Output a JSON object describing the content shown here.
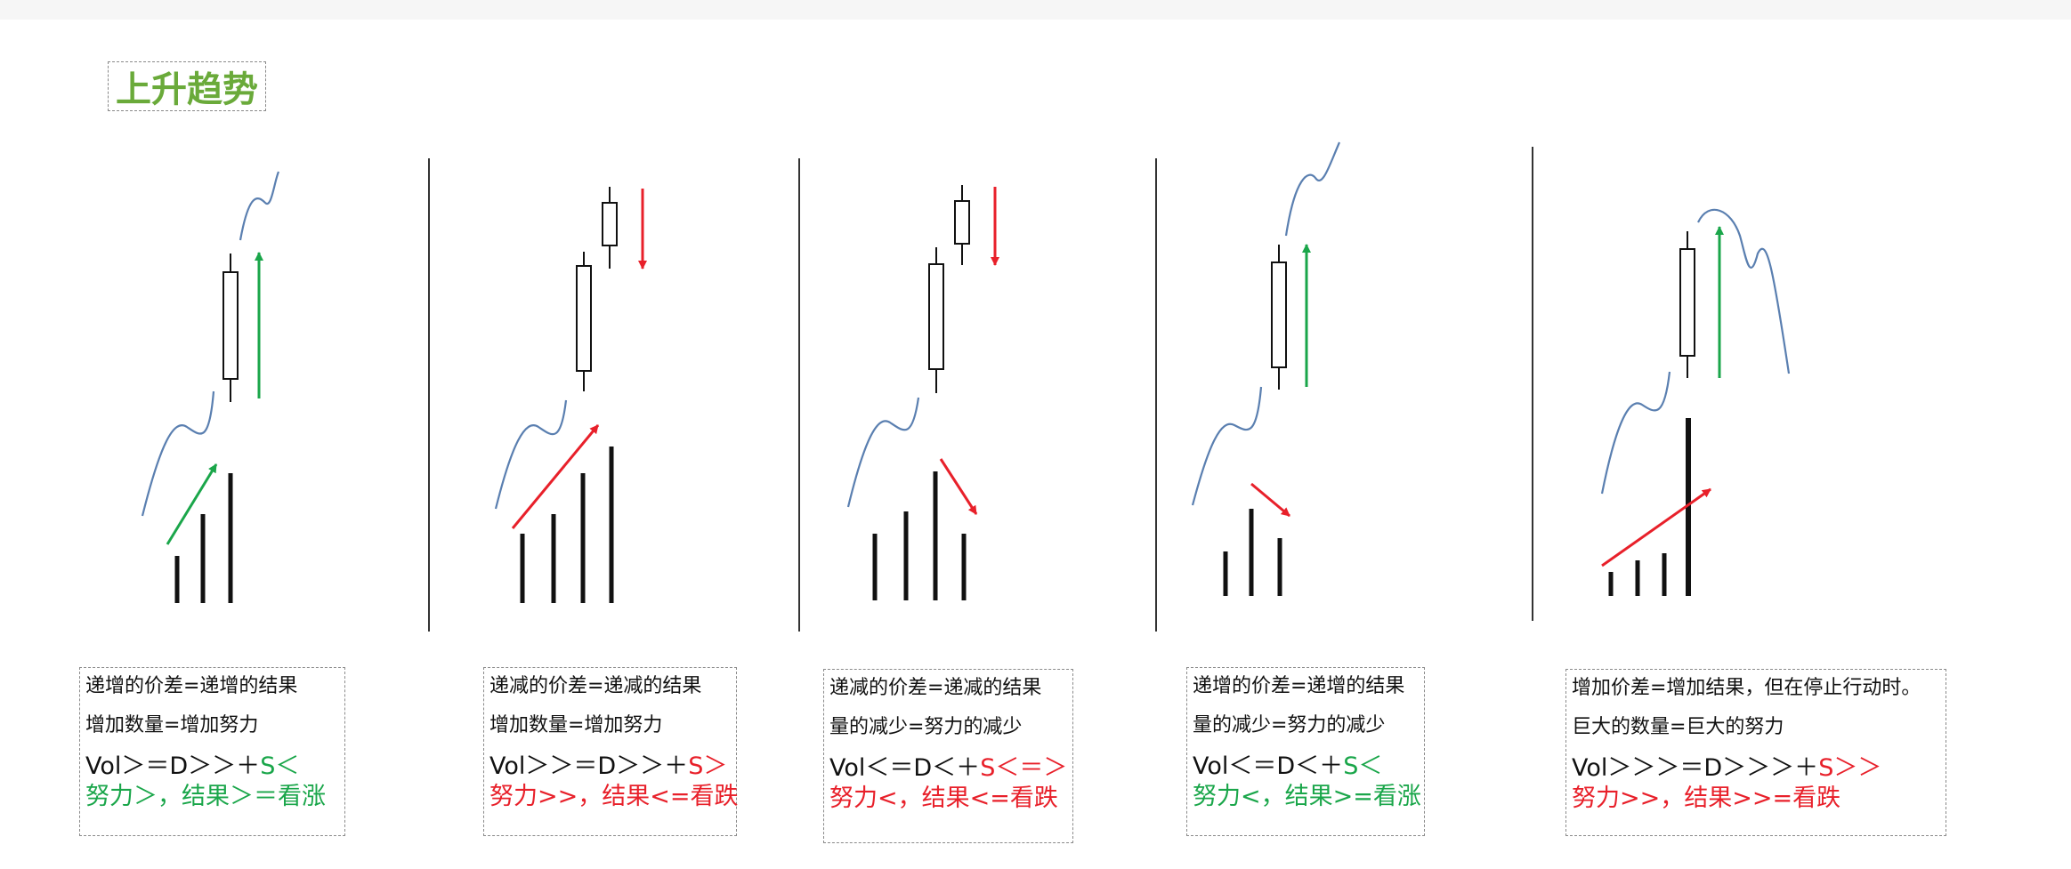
{
  "title": "上升趋势",
  "colors": {
    "title": "#6aaa3a",
    "red": "#e8202a",
    "green": "#1aa64a",
    "curve": "#5a7fb0",
    "bar": "#111111"
  },
  "panels": [
    {
      "line1": "递增的价差=递增的结果",
      "line2": "增加数量=增加努力",
      "formula_main": "Vol＞＝D＞＞＋",
      "formula_s": "S＜",
      "formula_color": "green",
      "result": "努力＞，结果＞＝看涨",
      "result_color": "green",
      "volume_arrow": "green",
      "price_arrow": "green-up"
    },
    {
      "line1": "递减的价差=递减的结果",
      "line2": "增加数量=增加努力",
      "formula_main": "Vol＞＞＝D＞＞＋",
      "formula_s": "S＞",
      "formula_color": "red",
      "result": "努力>>，结果<=看跌",
      "result_color": "red",
      "volume_arrow": "red",
      "price_arrow": "red-down"
    },
    {
      "line1": "递减的价差=递减的结果",
      "line2": "量的减少=努力的减少",
      "formula_main": "Vol＜＝D＜＋",
      "formula_s": "S＜＝＞",
      "formula_color": "red",
      "result": "努力<，结果<=看跌",
      "result_color": "red",
      "volume_arrow": "red",
      "price_arrow": "red-down"
    },
    {
      "line1": "递增的价差=递增的结果",
      "line2": "量的减少=努力的减少",
      "formula_main": "Vol＜＝D＜＋",
      "formula_s": "S＜",
      "formula_color": "green",
      "result": "努力<，结果>=看涨",
      "result_color": "green",
      "volume_arrow": "red",
      "price_arrow": "green-up"
    },
    {
      "line1": "增加价差=增加结果，但在停止行动时。",
      "line2": "巨大的数量=巨大的努力",
      "formula_main": "Vol＞＞＞＝D＞＞＞＋",
      "formula_s": "S＞＞",
      "formula_color": "red",
      "result": "努力>>，结果>>=看跌",
      "result_color": "red",
      "volume_arrow": "red",
      "price_arrow": "green-up"
    }
  ]
}
